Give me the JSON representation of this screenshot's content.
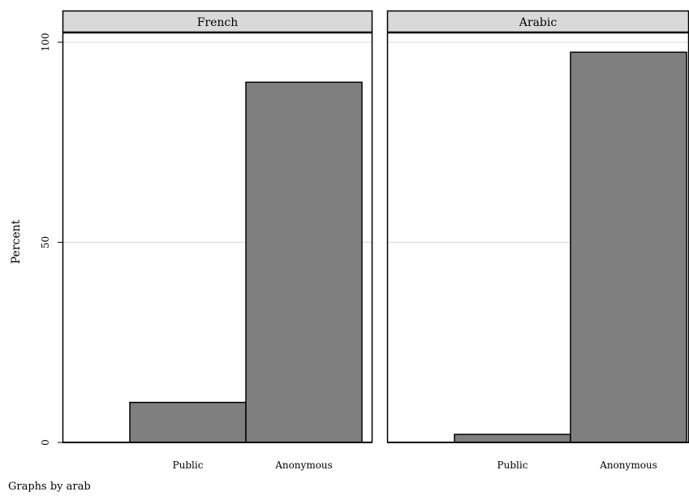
{
  "chart_data": {
    "type": "bar",
    "ylabel": "Percent",
    "ylim": [
      0,
      100
    ],
    "yticks": [
      0,
      50,
      100
    ],
    "grid": true,
    "categories": [
      "Public",
      "Anonymous"
    ],
    "panels": [
      {
        "title": "French",
        "values": [
          10,
          90
        ]
      },
      {
        "title": "Arabic",
        "values": [
          2,
          97.5
        ]
      }
    ],
    "note": "Graphs by arab",
    "colors": {
      "bar": "#7f7f7f",
      "strip": "#d9d9d9",
      "grid": "#d9d9d9"
    }
  }
}
